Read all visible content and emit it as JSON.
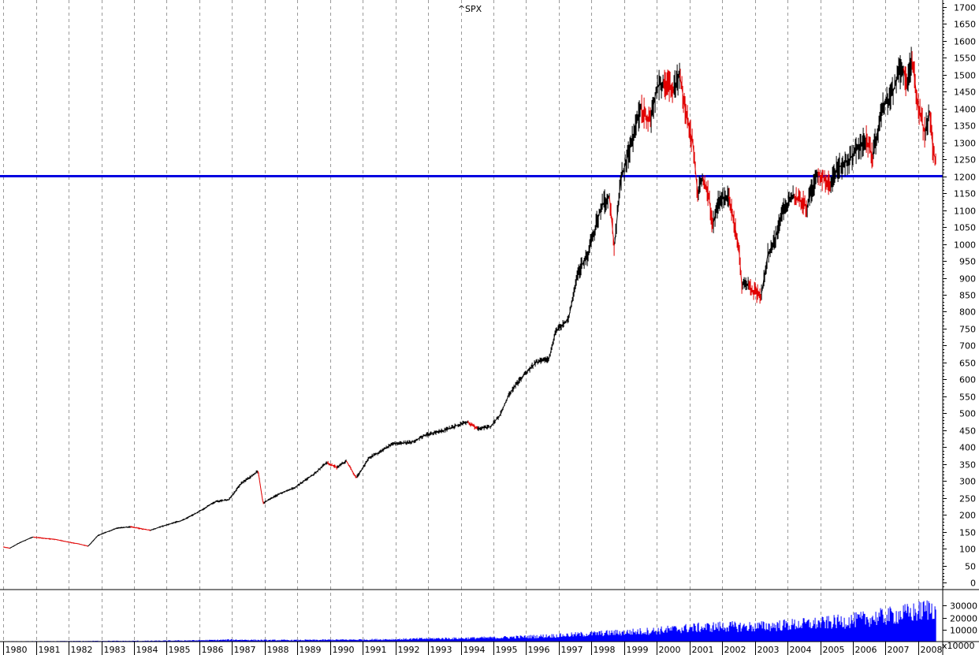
{
  "chart_data": [
    {
      "type": "line",
      "title": "^SPX",
      "xlabel": "",
      "ylabel": "",
      "ylim": [
        -20,
        1720
      ],
      "y_ticks": [
        0,
        50,
        100,
        150,
        200,
        250,
        300,
        350,
        400,
        450,
        500,
        550,
        600,
        650,
        700,
        750,
        800,
        850,
        900,
        950,
        1000,
        1050,
        1100,
        1150,
        1200,
        1250,
        1300,
        1350,
        1400,
        1450,
        1500,
        1550,
        1600,
        1650,
        1700
      ],
      "x_ticks": [
        "1980",
        "1981",
        "1982",
        "1983",
        "1984",
        "1985",
        "1986",
        "1987",
        "1988",
        "1989",
        "1990",
        "1991",
        "1992",
        "1993",
        "1994",
        "1995",
        "1996",
        "1997",
        "1998",
        "1999",
        "2000",
        "2001",
        "2002",
        "2003",
        "2004",
        "2005",
        "2006",
        "2007",
        "2008"
      ],
      "grid": "vertical-dashed",
      "reference_line": {
        "y": 1200,
        "color": "#0000e0"
      },
      "colors": {
        "up": "#000000",
        "down": "#e00000"
      },
      "series": [
        {
          "x": [
            1980.0,
            1980.2,
            1980.5,
            1980.9,
            1981.2,
            1981.6,
            1981.9,
            1982.3,
            1982.6,
            1982.9,
            1983.5,
            1983.9,
            1984.5,
            1984.9,
            1985.5,
            1985.9,
            1986.5,
            1986.9,
            1987.3,
            1987.6,
            1987.8,
            1987.95,
            1988.5,
            1988.9,
            1989.5,
            1989.9,
            1990.2,
            1990.5,
            1990.8,
            1990.95,
            1991.2,
            1991.5,
            1991.9,
            1992.5,
            1992.9,
            1993.5,
            1993.9,
            1994.2,
            1994.5,
            1994.9,
            1995.2,
            1995.5,
            1995.9,
            1996.3,
            1996.7,
            1996.9,
            1997.3,
            1997.6,
            1997.9,
            1998.3,
            1998.55,
            1998.7,
            1998.9,
            1999.2,
            1999.5,
            1999.8,
            2000.0,
            2000.2,
            2000.5,
            2000.7,
            2000.9,
            2001.1,
            2001.25,
            2001.4,
            2001.6,
            2001.7,
            2001.9,
            2002.2,
            2002.5,
            2002.6,
            2002.8,
            2002.95,
            2003.2,
            2003.4,
            2003.6,
            2003.9,
            2004.2,
            2004.6,
            2004.9,
            2005.3,
            2005.5,
            2005.9,
            2006.2,
            2006.4,
            2006.6,
            2006.9,
            2007.2,
            2007.4,
            2007.55,
            2007.65,
            2007.8,
            2007.9,
            2008.0,
            2008.2,
            2008.35,
            2008.45,
            2008.55
          ],
          "y": [
            106,
            102,
            118,
            135,
            132,
            128,
            122,
            115,
            108,
            140,
            162,
            165,
            155,
            168,
            185,
            205,
            240,
            245,
            295,
            315,
            330,
            235,
            265,
            280,
            320,
            355,
            340,
            360,
            310,
            330,
            370,
            385,
            410,
            415,
            435,
            450,
            465,
            475,
            455,
            460,
            495,
            560,
            610,
            650,
            660,
            740,
            780,
            920,
            970,
            1110,
            1140,
            990,
            1190,
            1290,
            1400,
            1360,
            1460,
            1480,
            1450,
            1500,
            1380,
            1300,
            1150,
            1200,
            1140,
            1050,
            1130,
            1140,
            1000,
            880,
            880,
            860,
            850,
            970,
            1010,
            1110,
            1140,
            1110,
            1210,
            1180,
            1220,
            1250,
            1290,
            1310,
            1260,
            1400,
            1440,
            1500,
            1520,
            1460,
            1550,
            1480,
            1400,
            1330,
            1390,
            1280,
            1240
          ]
        }
      ]
    },
    {
      "type": "bar",
      "title": "",
      "unit_label": "x10000",
      "ylim": [
        0,
        42000
      ],
      "y_ticks": [
        10000,
        20000,
        30000
      ],
      "y_tick_labels": [
        "10000",
        "20000",
        "30000"
      ],
      "color": "#0000ff",
      "series": [
        {
          "x": [
            1980,
            1981,
            1982,
            1983,
            1984,
            1985,
            1986,
            1987,
            1988,
            1989,
            1990,
            1991,
            1992,
            1993,
            1994,
            1995,
            1996,
            1997,
            1998,
            1999,
            2000,
            2001,
            2002,
            2003,
            2004,
            2005,
            2006,
            2007,
            2008,
            2008.5
          ],
          "y": [
            300,
            350,
            450,
            600,
            600,
            800,
            1100,
            1600,
            1300,
            1300,
            1500,
            1700,
            2000,
            2600,
            2900,
            3400,
            4200,
            5300,
            6800,
            8100,
            9600,
            11800,
            13200,
            13000,
            14600,
            16000,
            18500,
            22000,
            26000,
            30000
          ]
        }
      ]
    }
  ]
}
